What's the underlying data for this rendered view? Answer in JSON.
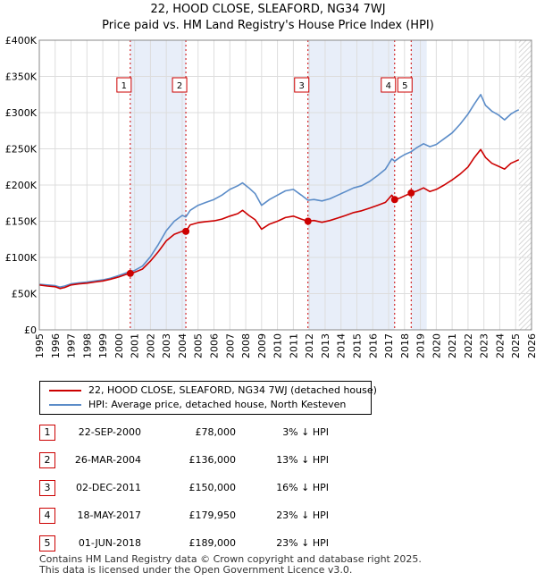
{
  "title_line1": "22, HOOD CLOSE, SLEAFORD, NG34 7WJ",
  "title_line2": "Price paid vs. HM Land Registry's House Price Index (HPI)",
  "colors": {
    "property": "#cc0000",
    "hpi": "#5b8cc8",
    "shade": "#e8eef9",
    "grid": "#dddddd",
    "marker": "#cc0000",
    "future_hatch": "#bbbbbb"
  },
  "chart_data": {
    "type": "line",
    "title": "Price paid vs. HM Land Registry's House Price Index (HPI)",
    "xlabel": "",
    "ylabel": "",
    "xlim": [
      1995,
      2026
    ],
    "ylim": [
      0,
      400000
    ],
    "y_tick_values": [
      0,
      50000,
      100000,
      150000,
      200000,
      250000,
      300000,
      350000,
      400000
    ],
    "y_tick_labels": [
      "£0",
      "£50K",
      "£100K",
      "£150K",
      "£200K",
      "£250K",
      "£300K",
      "£350K",
      "£400K"
    ],
    "x_tick_labels": [
      "1995",
      "1996",
      "1997",
      "1998",
      "1999",
      "2000",
      "2001",
      "2002",
      "2003",
      "2004",
      "2005",
      "2006",
      "2007",
      "2008",
      "2009",
      "2010",
      "2011",
      "2012",
      "2013",
      "2014",
      "2015",
      "2016",
      "2017",
      "2018",
      "2019",
      "2020",
      "2021",
      "2022",
      "2023",
      "2024",
      "2025",
      "2026"
    ],
    "data_end_year": 2025.2,
    "series": [
      {
        "name": "22, HOOD CLOSE, SLEAFORD, NG34 7WJ (detached house)",
        "color": "#cc0000",
        "points": [
          [
            1995.0,
            62000
          ],
          [
            1995.5,
            60500
          ],
          [
            1996.0,
            59500
          ],
          [
            1996.3,
            57000
          ],
          [
            1996.6,
            58500
          ],
          [
            1997.0,
            62000
          ],
          [
            1997.5,
            63500
          ],
          [
            1998.0,
            64500
          ],
          [
            1998.5,
            66000
          ],
          [
            1999.0,
            67500
          ],
          [
            1999.5,
            70000
          ],
          [
            2000.0,
            73000
          ],
          [
            2000.4,
            76000
          ],
          [
            2000.73,
            78000
          ],
          [
            2001.0,
            79500
          ],
          [
            2001.5,
            84000
          ],
          [
            2002.0,
            95000
          ],
          [
            2002.5,
            108000
          ],
          [
            2003.0,
            123000
          ],
          [
            2003.5,
            132000
          ],
          [
            2004.0,
            136000
          ],
          [
            2004.23,
            136000
          ],
          [
            2004.5,
            145000
          ],
          [
            2005.0,
            148000
          ],
          [
            2005.5,
            149500
          ],
          [
            2006.0,
            150500
          ],
          [
            2006.5,
            153000
          ],
          [
            2007.0,
            157000
          ],
          [
            2007.5,
            160500
          ],
          [
            2007.8,
            165000
          ],
          [
            2008.2,
            158000
          ],
          [
            2008.6,
            152000
          ],
          [
            2009.0,
            139000
          ],
          [
            2009.5,
            146000
          ],
          [
            2010.0,
            150000
          ],
          [
            2010.5,
            155000
          ],
          [
            2011.0,
            157000
          ],
          [
            2011.5,
            153000
          ],
          [
            2011.92,
            150000
          ],
          [
            2012.3,
            151000
          ],
          [
            2012.8,
            148500
          ],
          [
            2013.3,
            151000
          ],
          [
            2013.8,
            154500
          ],
          [
            2014.3,
            158000
          ],
          [
            2014.8,
            162000
          ],
          [
            2015.3,
            164500
          ],
          [
            2015.8,
            168000
          ],
          [
            2016.3,
            172000
          ],
          [
            2016.8,
            176000
          ],
          [
            2017.2,
            186000
          ],
          [
            2017.38,
            179950
          ],
          [
            2017.7,
            182000
          ],
          [
            2018.0,
            185000
          ],
          [
            2018.42,
            189000
          ],
          [
            2018.8,
            192000
          ],
          [
            2019.2,
            196000
          ],
          [
            2019.6,
            191000
          ],
          [
            2020.0,
            194000
          ],
          [
            2020.5,
            200000
          ],
          [
            2021.0,
            207000
          ],
          [
            2021.5,
            215000
          ],
          [
            2022.0,
            225000
          ],
          [
            2022.4,
            238000
          ],
          [
            2022.8,
            249000
          ],
          [
            2023.1,
            238000
          ],
          [
            2023.5,
            230000
          ],
          [
            2023.9,
            226000
          ],
          [
            2024.3,
            222000
          ],
          [
            2024.7,
            230000
          ],
          [
            2025.0,
            233000
          ],
          [
            2025.2,
            235000
          ]
        ]
      },
      {
        "name": "HPI: Average price, detached house, North Kesteven",
        "color": "#5b8cc8",
        "points": [
          [
            1995.0,
            63000
          ],
          [
            1995.5,
            62000
          ],
          [
            1996.0,
            61000
          ],
          [
            1996.3,
            59000
          ],
          [
            1996.6,
            60500
          ],
          [
            1997.0,
            63500
          ],
          [
            1997.5,
            65000
          ],
          [
            1998.0,
            66000
          ],
          [
            1998.5,
            67500
          ],
          [
            1999.0,
            69000
          ],
          [
            1999.5,
            71500
          ],
          [
            2000.0,
            75000
          ],
          [
            2000.4,
            78000
          ],
          [
            2000.73,
            80500
          ],
          [
            2001.0,
            82000
          ],
          [
            2001.5,
            88000
          ],
          [
            2002.0,
            101000
          ],
          [
            2002.5,
            118000
          ],
          [
            2003.0,
            137000
          ],
          [
            2003.5,
            150000
          ],
          [
            2004.0,
            158000
          ],
          [
            2004.23,
            156000
          ],
          [
            2004.5,
            165000
          ],
          [
            2005.0,
            172000
          ],
          [
            2005.5,
            176000
          ],
          [
            2006.0,
            180000
          ],
          [
            2006.5,
            186000
          ],
          [
            2007.0,
            194000
          ],
          [
            2007.5,
            199000
          ],
          [
            2007.8,
            203000
          ],
          [
            2008.2,
            196000
          ],
          [
            2008.6,
            188000
          ],
          [
            2009.0,
            172000
          ],
          [
            2009.5,
            180000
          ],
          [
            2010.0,
            186000
          ],
          [
            2010.5,
            192000
          ],
          [
            2011.0,
            194000
          ],
          [
            2011.5,
            186000
          ],
          [
            2011.92,
            179000
          ],
          [
            2012.3,
            180000
          ],
          [
            2012.8,
            178000
          ],
          [
            2013.3,
            181000
          ],
          [
            2013.8,
            186000
          ],
          [
            2014.3,
            191000
          ],
          [
            2014.8,
            196000
          ],
          [
            2015.3,
            199000
          ],
          [
            2015.8,
            205000
          ],
          [
            2016.3,
            213000
          ],
          [
            2016.8,
            222000
          ],
          [
            2017.2,
            236000
          ],
          [
            2017.38,
            233000
          ],
          [
            2017.7,
            238000
          ],
          [
            2018.0,
            242000
          ],
          [
            2018.42,
            246000
          ],
          [
            2018.8,
            252000
          ],
          [
            2019.2,
            257000
          ],
          [
            2019.6,
            253000
          ],
          [
            2020.0,
            256000
          ],
          [
            2020.5,
            264000
          ],
          [
            2021.0,
            272000
          ],
          [
            2021.5,
            284000
          ],
          [
            2022.0,
            298000
          ],
          [
            2022.4,
            312000
          ],
          [
            2022.8,
            325000
          ],
          [
            2023.1,
            310000
          ],
          [
            2023.5,
            302000
          ],
          [
            2023.9,
            297000
          ],
          [
            2024.3,
            290000
          ],
          [
            2024.7,
            298000
          ],
          [
            2025.0,
            302000
          ],
          [
            2025.2,
            304000
          ]
        ]
      }
    ],
    "sales": [
      {
        "label": "1",
        "x": 2000.73,
        "price": 78000
      },
      {
        "label": "2",
        "x": 2004.23,
        "price": 136000
      },
      {
        "label": "3",
        "x": 2011.92,
        "price": 150000
      },
      {
        "label": "4",
        "x": 2017.38,
        "price": 179950
      },
      {
        "label": "5",
        "x": 2018.42,
        "price": 189000
      }
    ],
    "shaded_ranges": [
      [
        2000.73,
        2004.23
      ],
      [
        2011.92,
        2017.38
      ],
      [
        2018.42,
        2019.4
      ]
    ],
    "legend_position": "bottom-left"
  },
  "legend": {
    "property_label": "22, HOOD CLOSE, SLEAFORD, NG34 7WJ (detached house)",
    "hpi_label": "HPI: Average price, detached house, North Kesteven"
  },
  "sales_table": [
    {
      "num": "1",
      "date": "22-SEP-2000",
      "price": "£78,000",
      "hpi": "3% ↓ HPI"
    },
    {
      "num": "2",
      "date": "26-MAR-2004",
      "price": "£136,000",
      "hpi": "13% ↓ HPI"
    },
    {
      "num": "3",
      "date": "02-DEC-2011",
      "price": "£150,000",
      "hpi": "16% ↓ HPI"
    },
    {
      "num": "4",
      "date": "18-MAY-2017",
      "price": "£179,950",
      "hpi": "23% ↓ HPI"
    },
    {
      "num": "5",
      "date": "01-JUN-2018",
      "price": "£189,000",
      "hpi": "23% ↓ HPI"
    }
  ],
  "footer_line1": "Contains HM Land Registry data © Crown copyright and database right 2025.",
  "footer_line2": "This data is licensed under the Open Government Licence v3.0."
}
